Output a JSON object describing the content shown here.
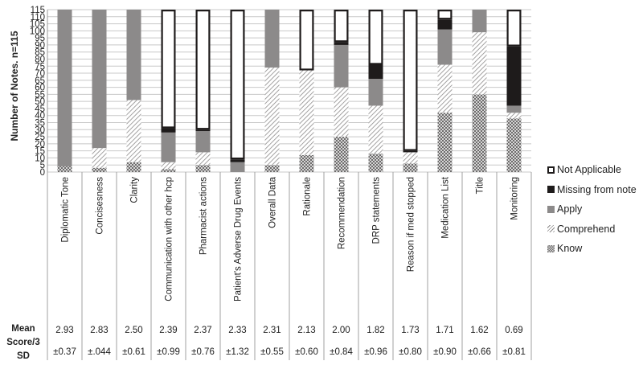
{
  "chart_data": {
    "type": "bar",
    "stacked": true,
    "title": "",
    "xlabel": "",
    "ylabel": "Number of Notes. n=115",
    "ylim": [
      0,
      115
    ],
    "yticks": [
      0,
      5,
      10,
      15,
      20,
      25,
      30,
      35,
      40,
      45,
      50,
      55,
      60,
      65,
      70,
      75,
      80,
      85,
      90,
      95,
      100,
      105,
      110,
      115
    ],
    "grid": true,
    "legend_position": "right",
    "categories": [
      "Diplomatic Tone",
      "Concisesness",
      "Clarity",
      "Communication with other hcp",
      "Pharmacist actions",
      "Patient's Adverse Drug Events",
      "Overall Data",
      "Rationale",
      "Recommendation",
      "DRP statements",
      "Reason if med stopped",
      "Medication List",
      "Title",
      "Monitoring"
    ],
    "series": [
      {
        "name": "Know",
        "pattern": "crosshatch",
        "values": [
          4,
          3,
          7,
          2,
          5,
          0,
          5,
          12,
          25,
          13,
          6,
          42,
          55,
          38
        ]
      },
      {
        "name": "Comprehend",
        "pattern": "diagonal",
        "values": [
          0,
          14,
          44,
          5,
          9,
          0,
          69,
          60,
          35,
          34,
          8,
          34,
          44,
          4
        ]
      },
      {
        "name": "Apply",
        "pattern": "solid-gray",
        "values": [
          111,
          98,
          64,
          21,
          15,
          7,
          41,
          0,
          30,
          19,
          0,
          25,
          16,
          5
        ]
      },
      {
        "name": "Missing from note",
        "pattern": "solid-black",
        "values": [
          0,
          0,
          0,
          3,
          1,
          2,
          0,
          0,
          2,
          10,
          1,
          7,
          0,
          42
        ]
      },
      {
        "name": "Not Applicable",
        "pattern": "outline",
        "values": [
          0,
          0,
          0,
          84,
          85,
          106,
          0,
          43,
          23,
          39,
          100,
          7,
          0,
          26
        ]
      }
    ],
    "legend_order": [
      "Not Applicable",
      "Missing from note",
      "Apply",
      "Comprehend",
      "Know"
    ],
    "table": {
      "row_labels": [
        "Mean",
        "Score/3",
        "SD"
      ],
      "mean": [
        "2.93",
        "2.83",
        "2.50",
        "2.39",
        "2.37",
        "2.33",
        "2.31",
        "2.13",
        "2.00",
        "1.82",
        "1.73",
        "1.71",
        "1.62",
        "0.69"
      ],
      "sd": [
        "±0.37",
        "±.044",
        "±0.61",
        "±0.99",
        "±0.76",
        "±1.32",
        "±0.55",
        "±0.60",
        "±0.84",
        "±0.96",
        "±0.80",
        "±0.90",
        "±0.66",
        "±0.81"
      ]
    },
    "colors": {
      "apply": "#8c8a8a",
      "missing": "#1e1b1b",
      "outline": "#1e1b1b",
      "grid": "#c8c8c8",
      "pattern": "#8c8a8a"
    }
  }
}
